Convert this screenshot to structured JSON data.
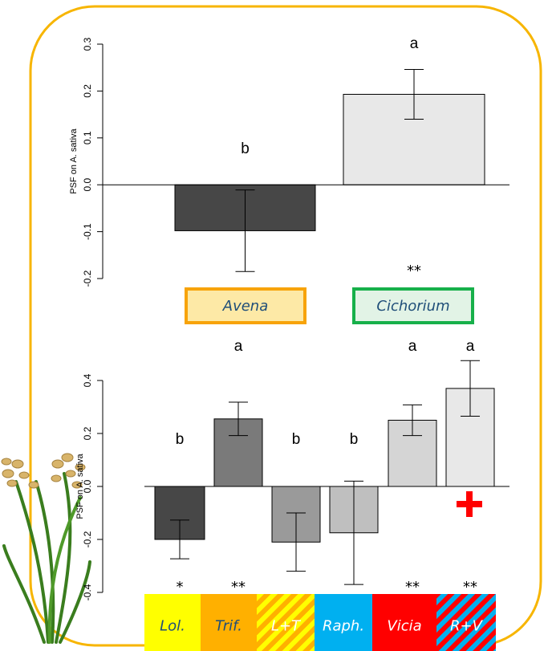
{
  "chart_data": [
    {
      "type": "bar",
      "ylabel": "PSF on A. sativa",
      "categories": [
        "Avena",
        "Cichorium"
      ],
      "values": [
        -0.098,
        0.193
      ],
      "errors": [
        0.087,
        0.053
      ],
      "colors": [
        "#474747",
        "#e8e8e8"
      ],
      "letters": [
        "b",
        "a"
      ],
      "significance": [
        null,
        "**"
      ],
      "label_fills": [
        "#fde9a6",
        "#e2f3e6"
      ],
      "label_borders": [
        "#f7a30a",
        "#17b04a"
      ],
      "label_text_colors": [
        "#1f4e79",
        "#1f4e79"
      ],
      "ylim": [
        -0.2,
        0.3
      ],
      "yticks": [
        -0.2,
        -0.1,
        {
          "value": 0,
          "label": "0.0"
        },
        0.1,
        0.2,
        0.3
      ]
    },
    {
      "type": "bar",
      "ylabel": "PSF on A. sativa",
      "categories": [
        "Lol.",
        "Trif.",
        "L+T",
        "Raph.",
        "Vicia",
        "R+V"
      ],
      "values": [
        -0.2,
        0.255,
        -0.21,
        -0.175,
        0.25,
        0.37
      ],
      "errors": [
        0.073,
        0.063,
        0.11,
        0.195,
        0.058,
        0.105
      ],
      "colors": [
        "#474747",
        "#7a7a7a",
        "#9a9a9a",
        "#bfbfbf",
        "#d5d5d5",
        "#e8e8e8"
      ],
      "letters": [
        "b",
        "a",
        "b",
        "b",
        "a",
        "a"
      ],
      "significance": [
        "*",
        "**",
        null,
        null,
        "**",
        "**"
      ],
      "label_fills": [
        "#ffff00",
        "#ffb000",
        [
          "#ffff00",
          "#ffb000"
        ],
        "#00b0f0",
        "#ff0000",
        [
          "#ff0000",
          "#00b0f0"
        ]
      ],
      "label_text_colors": [
        "#1f4e79",
        "#1f4e79",
        "#ffffff",
        "#ffffff",
        "#ffffff",
        "#ffffff"
      ],
      "ylim": [
        -0.4,
        0.4
      ],
      "yticks": [
        -0.4,
        -0.2,
        {
          "value": 0,
          "label": "0.0"
        },
        0.2,
        0.4
      ]
    }
  ]
}
